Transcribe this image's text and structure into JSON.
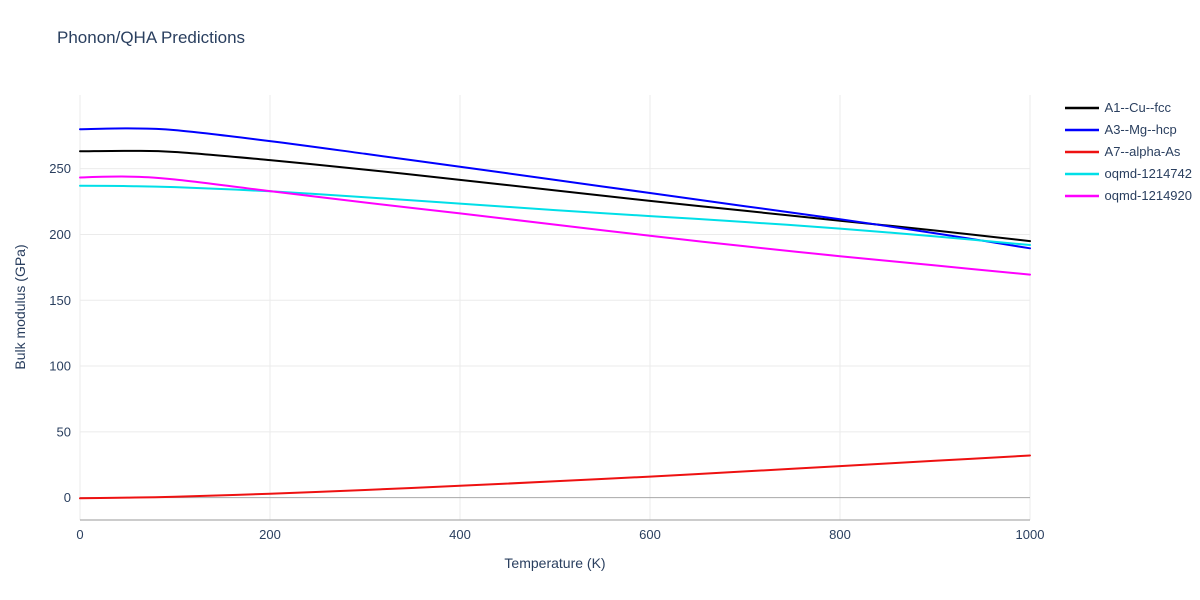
{
  "chart_data": {
    "type": "line",
    "title": "Phonon/QHA Predictions",
    "xlabel": "Temperature (K)",
    "ylabel": "Bulk modulus (GPa)",
    "xlim": [
      0,
      1000
    ],
    "ylim": [
      -17,
      306
    ],
    "xticks": [
      0,
      200,
      400,
      600,
      800,
      1000
    ],
    "yticks": [
      0,
      50,
      100,
      150,
      200,
      250
    ],
    "grid": true,
    "legend_position": "top-right-outside",
    "colors": {
      "background": "#ffffff",
      "grid": "#ebebeb",
      "zero_line": "#a8a8a8",
      "axis_line": "#9a9a9a",
      "text": "#2a3f5f"
    },
    "series": [
      {
        "name": "A1--Cu--fcc",
        "color": "#000000",
        "x": [
          0,
          50,
          100,
          200,
          300,
          400,
          500,
          600,
          700,
          800,
          900,
          1000
        ],
        "y": [
          263.2,
          263.5,
          262.7,
          256.5,
          249.3,
          241.5,
          233.5,
          225.5,
          218.0,
          210.5,
          203.0,
          195.0
        ]
      },
      {
        "name": "A3--Mg--hcp",
        "color": "#0000ff",
        "x": [
          0,
          50,
          100,
          200,
          300,
          400,
          500,
          600,
          700,
          800,
          900,
          1000
        ],
        "y": [
          280.0,
          280.6,
          279.3,
          271.0,
          261.3,
          251.5,
          241.5,
          231.5,
          221.5,
          211.5,
          201.0,
          189.5
        ]
      },
      {
        "name": "A7--alpha-As",
        "color": "#ee1111",
        "x": [
          0,
          50,
          100,
          200,
          300,
          400,
          500,
          600,
          700,
          800,
          900,
          1000
        ],
        "y": [
          -0.5,
          0.0,
          0.7,
          3.0,
          5.8,
          9.0,
          12.4,
          16.0,
          19.9,
          24.0,
          28.0,
          32.0
        ]
      },
      {
        "name": "oqmd-1214742",
        "color": "#00dfe8",
        "x": [
          0,
          50,
          100,
          200,
          300,
          400,
          500,
          600,
          700,
          800,
          900,
          1000
        ],
        "y": [
          237.0,
          236.8,
          236.0,
          232.8,
          228.3,
          223.5,
          218.5,
          214.0,
          209.5,
          204.5,
          198.5,
          192.0
        ]
      },
      {
        "name": "oqmd-1214920",
        "color": "#ff00ff",
        "x": [
          0,
          50,
          100,
          200,
          300,
          400,
          500,
          600,
          700,
          800,
          900,
          1000
        ],
        "y": [
          243.3,
          244.0,
          241.8,
          233.0,
          224.3,
          216.0,
          207.5,
          199.0,
          191.0,
          183.5,
          176.5,
          169.5
        ]
      }
    ]
  }
}
